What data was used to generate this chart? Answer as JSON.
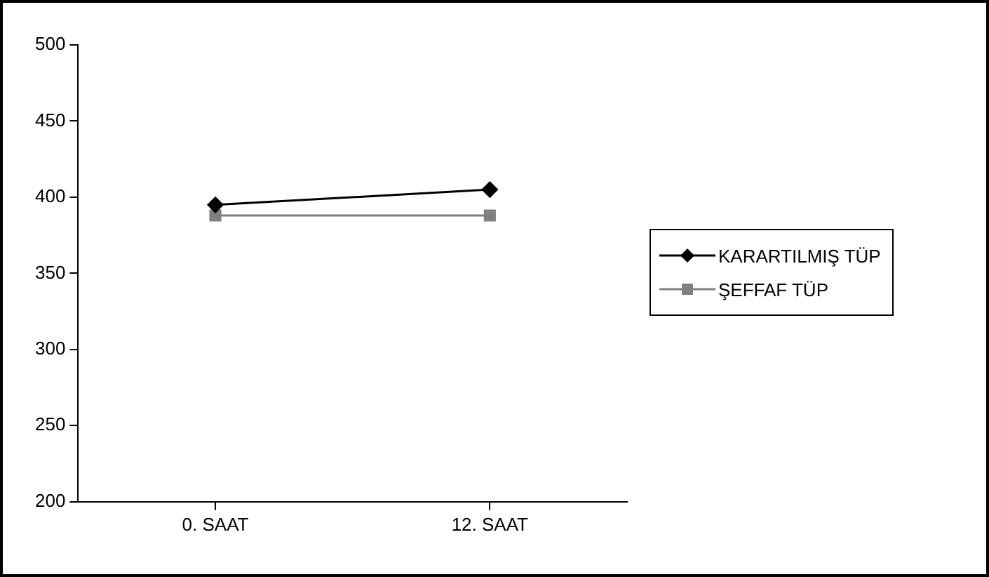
{
  "chart_data": {
    "type": "line",
    "categories": [
      "0. SAAT",
      "12. SAAT"
    ],
    "series": [
      {
        "name": "KARARTILMIŞ TÜP",
        "color": "#000000",
        "marker": "diamond",
        "values": [
          395,
          405
        ]
      },
      {
        "name": "ŞEFFAF TÜP",
        "color": "#808080",
        "marker": "square",
        "values": [
          388,
          388
        ]
      }
    ],
    "ylim": [
      200,
      500
    ],
    "yticks": [
      200,
      250,
      300,
      350,
      400,
      450,
      500
    ],
    "grid": false,
    "legend": "right"
  }
}
